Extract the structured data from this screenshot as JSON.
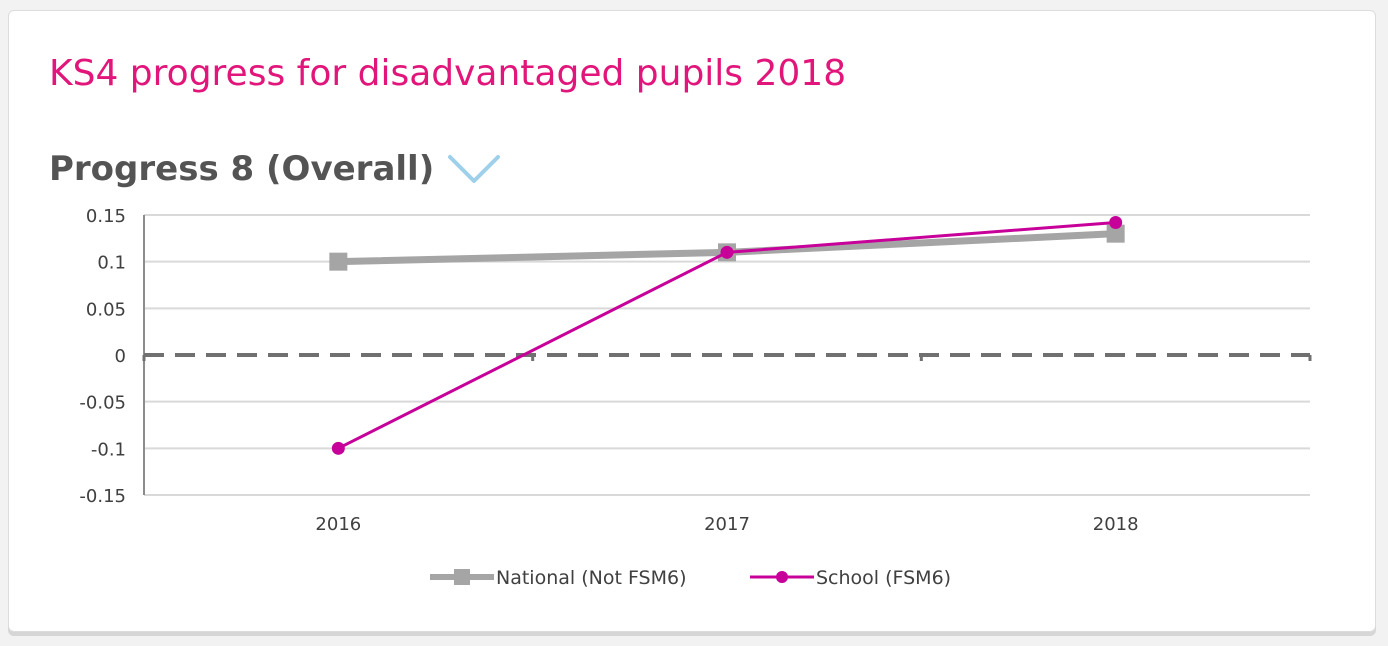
{
  "card": {
    "title": "KS4 progress for disadvantaged pupils 2018"
  },
  "selector": {
    "label": "Progress 8 (Overall)",
    "icon": "chevron-down-icon"
  },
  "colors": {
    "title": "#e2157a",
    "national": "#a5a5a5",
    "school": "#c8009a",
    "zero_line": "#707070",
    "gridline": "#d9d9d9",
    "chevron": "#9fd0ea"
  },
  "chart_data": {
    "type": "line",
    "categories": [
      "2016",
      "2017",
      "2018"
    ],
    "ylim": [
      -0.15,
      0.15
    ],
    "yticks": [
      0.15,
      0.1,
      0.05,
      0,
      -0.05,
      -0.1,
      -0.15
    ],
    "ytick_labels": [
      "0.15",
      "0.1",
      "0.05",
      "0",
      "-0.05",
      "-0.1",
      "-0.15"
    ],
    "grid": true,
    "legend_position": "bottom",
    "series": [
      {
        "name": "National (Not FSM6)",
        "values": [
          0.1,
          0.11,
          0.13
        ],
        "marker": "square"
      },
      {
        "name": "School (FSM6)",
        "values": [
          -0.1,
          0.11,
          0.142
        ],
        "marker": "circle"
      }
    ]
  }
}
